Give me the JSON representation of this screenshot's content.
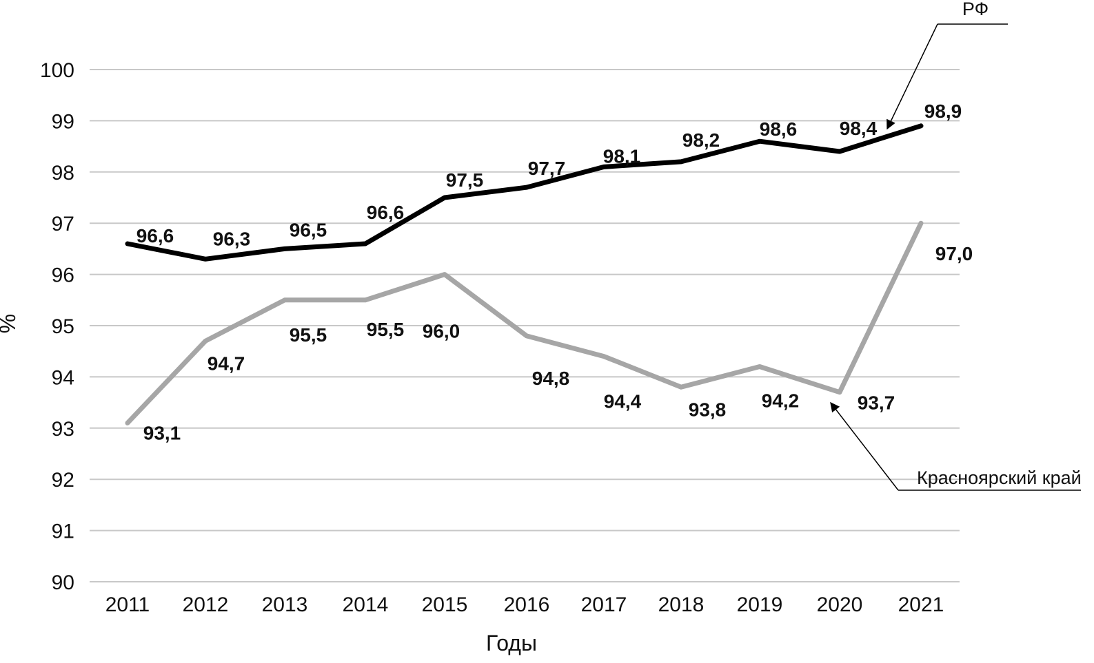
{
  "chart_data": {
    "type": "line",
    "title": "",
    "xlabel": "Годы",
    "ylabel": "%",
    "ylim": [
      90,
      100
    ],
    "yticks": [
      "90",
      "91",
      "92",
      "93",
      "94",
      "95",
      "96",
      "97",
      "98",
      "99",
      "100"
    ],
    "categories": [
      "2011",
      "2012",
      "2013",
      "2014",
      "2015",
      "2016",
      "2017",
      "2018",
      "2019",
      "2020",
      "2021"
    ],
    "grid": true,
    "series": [
      {
        "name": "РФ",
        "color": "#000000",
        "values": [
          96.6,
          96.3,
          96.5,
          96.6,
          97.5,
          97.7,
          98.1,
          98.2,
          98.6,
          98.4,
          98.9
        ],
        "labels": [
          "96,6",
          "96,3",
          "96,5",
          "96,6",
          "97,5",
          "97,7",
          "98,1",
          "98,2",
          "98,6",
          "98,4",
          "98,9"
        ]
      },
      {
        "name": "Красноярский край",
        "color": "#a6a6a6",
        "values": [
          93.1,
          94.7,
          95.5,
          95.5,
          96.0,
          94.8,
          94.4,
          93.8,
          94.2,
          93.7,
          97.0
        ],
        "labels": [
          "93,1",
          "94,7",
          "95,5",
          "95,5",
          "96,0",
          "94,8",
          "94,4",
          "93,8",
          "94,2",
          "93,7",
          "97,0"
        ]
      }
    ],
    "gridColor": "#c8c8c8"
  }
}
